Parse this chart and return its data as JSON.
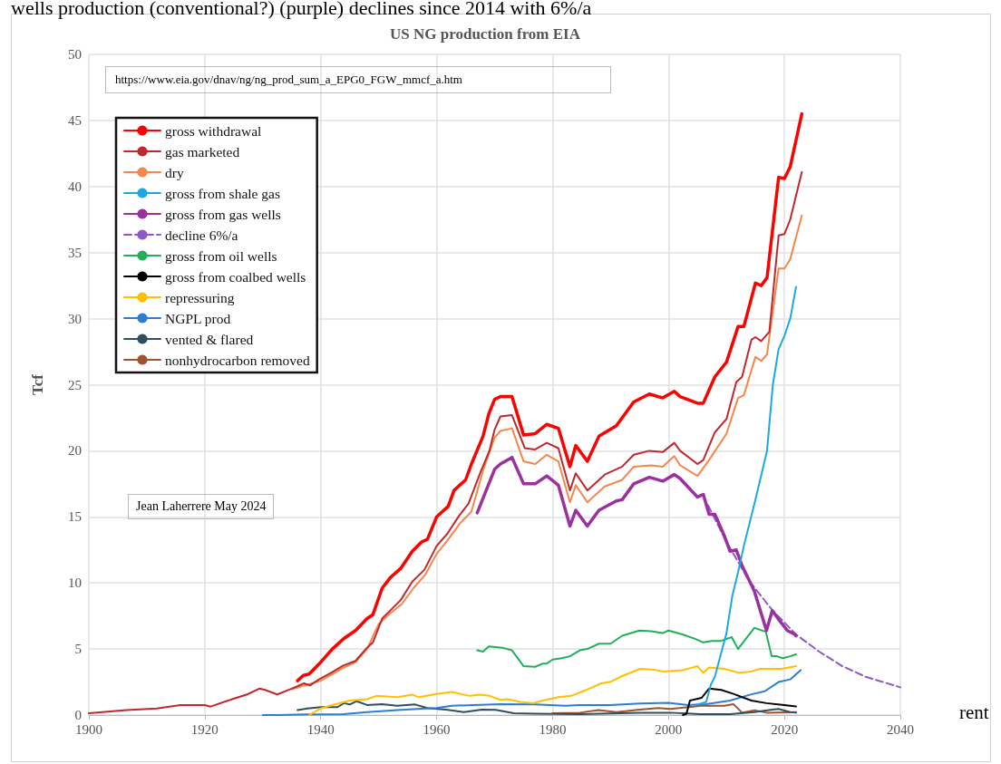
{
  "chart_data": {
    "type": "line",
    "title": "US NG production from EIA",
    "ylabel": "Tcf",
    "xlim": [
      1900,
      2040
    ],
    "xticks": [
      1900,
      1920,
      1940,
      1960,
      1980,
      2000,
      2020,
      2040
    ],
    "ylim": [
      0,
      50
    ],
    "yticks": [
      0,
      5,
      10,
      15,
      20,
      25,
      30,
      35,
      40,
      45,
      50
    ],
    "grid": true,
    "legend": "top left",
    "marker": "none",
    "line_style": "solid",
    "annotations": [
      "wells production (conventional?) (purple) declines since 2014 with 6%/a",
      "https://www.eia.gov/dnav/ng/ng_prod_sum_a_EPG0_FGW_mmcf_a.htm",
      "Jean Laherrere May 2024",
      "rent"
    ],
    "series": [
      {
        "name": "gross withdrawal",
        "color": "#ff0000",
        "x": [
          1936,
          1937,
          1938,
          1940,
          1942,
          1944,
          1946,
          1948,
          1949,
          1950.6,
          1952,
          1953.8,
          1955.8,
          1957.4,
          1958.4,
          1960,
          1962,
          1963,
          1965,
          1966,
          1968,
          1969,
          1970,
          1971,
          1973,
          1975,
          1977,
          1979,
          1981,
          1983,
          1984,
          1986,
          1988,
          1991,
          1994,
          1996.7,
          1999,
          2001,
          2002,
          2005,
          2006,
          2008,
          2010,
          2012,
          2013,
          2015,
          2016,
          2017,
          2019,
          2020,
          2021,
          2023
        ],
        "values": [
          2.6,
          3.0,
          3.1,
          4.0,
          5.0,
          5.8,
          6.4,
          7.3,
          7.6,
          9.6,
          10.4,
          11.1,
          12.4,
          13.1,
          13.3,
          15.0,
          15.8,
          17.0,
          17.8,
          19.0,
          21.1,
          22.8,
          23.9,
          24.1,
          24.1,
          21.2,
          21.3,
          22.0,
          21.7,
          18.8,
          20.4,
          19.2,
          21.1,
          21.9,
          23.7,
          24.3,
          24.0,
          24.5,
          24.1,
          23.6,
          23.6,
          25.6,
          26.7,
          29.4,
          29.4,
          32.7,
          32.5,
          33.1,
          40.7,
          40.6,
          41.5,
          45.5
        ]
      },
      {
        "name": "gas marketed",
        "color": "#c0282d",
        "x": [
          1900,
          1906.5,
          1911.7,
          1915.8,
          1920,
          1921,
          1924,
          1927.3,
          1929.4,
          1930.4,
          1932.5,
          1935,
          1937.1,
          1938.2,
          1939.7,
          1941.8,
          1943.9,
          1946,
          1948,
          1949,
          1950.6,
          1952.2,
          1953.8,
          1955.8,
          1957.9,
          1960,
          1961.8,
          1963.9,
          1965.5,
          1967.5,
          1969.1,
          1970,
          1971,
          1973,
          1975.2,
          1977,
          1979,
          1981,
          1983,
          1984,
          1986,
          1989,
          1992,
          1994,
          1996.7,
          1999,
          2001,
          2002,
          2005,
          2006,
          2008,
          2010,
          2011.7,
          2012.7,
          2014.3,
          2015,
          2016,
          2017.4,
          2019,
          2020,
          2021,
          2023
        ],
        "values": [
          0.14,
          0.37,
          0.5,
          0.76,
          0.76,
          0.64,
          1.1,
          1.56,
          2.0,
          1.9,
          1.56,
          2.0,
          2.4,
          2.25,
          2.7,
          3.2,
          3.75,
          4.1,
          5.1,
          5.5,
          7.3,
          8.0,
          8.7,
          10.1,
          11.0,
          12.8,
          13.7,
          15.1,
          16.0,
          18.3,
          20.0,
          21.6,
          22.6,
          22.7,
          20.2,
          20.1,
          20.6,
          20.2,
          17.0,
          18.3,
          17.0,
          18.2,
          18.8,
          19.7,
          20.0,
          19.9,
          20.6,
          20.0,
          19.0,
          19.3,
          21.4,
          22.4,
          25.2,
          25.6,
          28.4,
          28.6,
          28.3,
          29.0,
          36.3,
          36.4,
          37.5,
          41.1
        ]
      },
      {
        "name": "dry",
        "color": "#f4874b",
        "x": [
          1935,
          1940,
          1944,
          1946,
          1948,
          1950,
          1952,
          1954,
          1956,
          1958,
          1960,
          1962,
          1964,
          1966,
          1968,
          1970,
          1971,
          1973,
          1975,
          1977,
          1979,
          1981,
          1983,
          1984,
          1986,
          1989,
          1992,
          1994,
          1997,
          1999,
          2001,
          2002,
          2005,
          2007,
          2010,
          2012,
          2013,
          2015,
          2016,
          2017,
          2019,
          2020,
          2021,
          2023
        ],
        "values": [
          1.95,
          2.6,
          3.6,
          4.0,
          5.0,
          6.9,
          7.7,
          8.4,
          9.6,
          10.6,
          12.2,
          13.3,
          14.5,
          15.4,
          18.5,
          21.0,
          21.5,
          21.7,
          19.2,
          19.0,
          19.7,
          19.2,
          16.1,
          17.4,
          16.1,
          17.3,
          17.8,
          18.8,
          18.9,
          18.8,
          19.6,
          18.9,
          18.1,
          19.3,
          21.3,
          24.0,
          24.2,
          27.1,
          26.8,
          27.3,
          33.8,
          33.8,
          34.5,
          37.8
        ]
      },
      {
        "name": "gross from shale gas",
        "color": "#1ba9e0",
        "x": [
          2005,
          2006.5,
          2007.3,
          2008,
          2010,
          2011,
          2012,
          2013,
          2015,
          2017,
          2018,
          2019,
          2020,
          2021,
          2022
        ],
        "values": [
          0.8,
          1.0,
          2.3,
          2.9,
          6.2,
          9.0,
          10.8,
          12.8,
          16.3,
          20.0,
          25.0,
          27.7,
          28.7,
          30.0,
          32.4
        ]
      },
      {
        "name": "gross from gas wells",
        "color": "#9b30a0",
        "x": [
          1967,
          1970,
          1971,
          1973,
          1975,
          1977,
          1979,
          1981,
          1983,
          1984,
          1986,
          1988,
          1991,
          1992,
          1994,
          1996.7,
          1999,
          2001,
          2002,
          2005,
          2006,
          2007,
          2008,
          2009.6,
          2010.6,
          2011.7,
          2012.7,
          2014.8,
          2016.9,
          2017.9,
          2018.9,
          2020.5,
          2021.8,
          2022
        ],
        "values": [
          15.3,
          18.6,
          19.0,
          19.5,
          17.5,
          17.5,
          18.1,
          17.4,
          14.3,
          15.5,
          14.3,
          15.5,
          16.2,
          16.3,
          17.5,
          18.0,
          17.7,
          18.2,
          17.9,
          16.5,
          16.7,
          15.2,
          15.2,
          13.6,
          12.4,
          12.5,
          11.3,
          9.4,
          6.4,
          7.9,
          7.3,
          6.4,
          6.1,
          6.0
        ]
      },
      {
        "name": "decline 6%/a",
        "color": "#8e5ac8",
        "line_style": "dashed",
        "x": [
          2006.8,
          2010,
          2014,
          2018,
          2022,
          2026,
          2030,
          2034,
          2040
        ],
        "values": [
          15.9,
          13.1,
          10.1,
          7.9,
          6.1,
          4.8,
          3.7,
          2.9,
          2.1
        ]
      },
      {
        "name": "gross from oil wells",
        "color": "#21b05a",
        "x": [
          1967,
          1968,
          1969,
          1971.3,
          1973,
          1975,
          1977,
          1978.3,
          1979,
          1980,
          1981.6,
          1983,
          1984.7,
          1986,
          1988,
          1990,
          1992,
          1995,
          1997,
          1999,
          2000,
          2002.4,
          2004.4,
          2006,
          2007.5,
          2009,
          2010.9,
          2012,
          2014.8,
          2016.8,
          2017.8,
          2018.7,
          2019.7,
          2021,
          2022
        ],
        "values": [
          4.9,
          4.8,
          5.2,
          5.1,
          4.9,
          3.7,
          3.65,
          3.9,
          3.9,
          4.2,
          4.3,
          4.45,
          4.9,
          5.0,
          5.4,
          5.4,
          6.0,
          6.4,
          6.35,
          6.2,
          6.4,
          6.1,
          5.8,
          5.5,
          5.6,
          5.6,
          5.9,
          5.0,
          6.6,
          6.3,
          4.45,
          4.45,
          4.3,
          4.45,
          4.6
        ]
      },
      {
        "name": "gross from coalbed wells",
        "color": "#000000",
        "x": [
          2002.5,
          2003.1,
          2003.7,
          2005.7,
          2007,
          2009.1,
          2011.2,
          2014.3,
          2016.9,
          2020,
          2022
        ],
        "values": [
          0,
          0.1,
          1.1,
          1.3,
          2.0,
          1.9,
          1.6,
          1.1,
          0.9,
          0.76,
          0.65
        ]
      },
      {
        "name": "repressuring",
        "color": "#ffc000",
        "x": [
          1938,
          1940,
          1942,
          1945,
          1948,
          1949.6,
          1953.2,
          1955.8,
          1956.9,
          1960,
          1962.6,
          1965.7,
          1967.5,
          1969.2,
          1971,
          1972.3,
          1974.4,
          1976.7,
          1978.3,
          1981,
          1983.2,
          1985.8,
          1988.4,
          1989.9,
          1992,
          1995.1,
          1997.2,
          1999,
          2002.4,
          2005,
          2006,
          2007,
          2009.6,
          2012.2,
          2014.3,
          2015.8,
          2019.5,
          2022
        ],
        "values": [
          0,
          0.5,
          0.75,
          1.1,
          1.2,
          1.45,
          1.35,
          1.55,
          1.35,
          1.6,
          1.75,
          1.45,
          1.55,
          1.45,
          1.15,
          1.2,
          1.0,
          0.9,
          1.1,
          1.35,
          1.45,
          1.9,
          2.4,
          2.5,
          2.95,
          3.5,
          3.45,
          3.3,
          3.4,
          3.7,
          3.2,
          3.6,
          3.5,
          3.2,
          3.3,
          3.5,
          3.5,
          3.7
        ]
      },
      {
        "name": "NGPL prod",
        "color": "#2e7dd2",
        "x": [
          1930,
          1932.5,
          1937.7,
          1943.9,
          1948,
          1953.2,
          1957.4,
          1960,
          1962.6,
          1966.3,
          1971,
          1977,
          1982.2,
          1984.7,
          1989.9,
          1995.1,
          2000,
          2003.4,
          2006.5,
          2010.6,
          2014.3,
          2016.6,
          2019,
          2021,
          2022.8
        ],
        "values": [
          0,
          0,
          0.05,
          0.07,
          0.23,
          0.37,
          0.48,
          0.53,
          0.7,
          0.76,
          0.83,
          0.8,
          0.7,
          0.76,
          0.76,
          0.87,
          0.92,
          0.76,
          0.83,
          1.1,
          1.57,
          1.8,
          2.5,
          2.7,
          3.4
        ]
      },
      {
        "name": "vented & flared",
        "color": "#2f4f5f",
        "x": [
          1936,
          1937.7,
          1940,
          1942.9,
          1944,
          1945,
          1946.2,
          1948,
          1950.6,
          1953.2,
          1956.3,
          1958.4,
          1961.6,
          1964.7,
          1967.8,
          1970.2,
          1973.3,
          1977,
          1984.7,
          1995.1,
          2000.3,
          2005.5,
          2010.6,
          2014.8,
          2017.9,
          2019,
          2021,
          2022
        ],
        "values": [
          0.37,
          0.5,
          0.6,
          0.6,
          0.9,
          0.8,
          1.05,
          0.76,
          0.83,
          0.7,
          0.8,
          0.53,
          0.41,
          0.23,
          0.41,
          0.4,
          0.14,
          0.1,
          0.07,
          0.18,
          0.18,
          0.07,
          0.07,
          0.23,
          0.41,
          0.46,
          0.23,
          0.18
        ]
      },
      {
        "name": "nonhydrocarbon removed",
        "color": "#a0522d",
        "x": [
          1980,
          1984.7,
          1987.9,
          1991,
          1995.1,
          1998.2,
          2000.3,
          2005.5,
          2009.6,
          2011.2,
          2012.7,
          2014.8,
          2016.9,
          2022
        ],
        "values": [
          0.14,
          0.18,
          0.37,
          0.23,
          0.41,
          0.53,
          0.46,
          0.7,
          0.7,
          0.83,
          0.18,
          0.37,
          0.18,
          0.23
        ]
      }
    ]
  }
}
